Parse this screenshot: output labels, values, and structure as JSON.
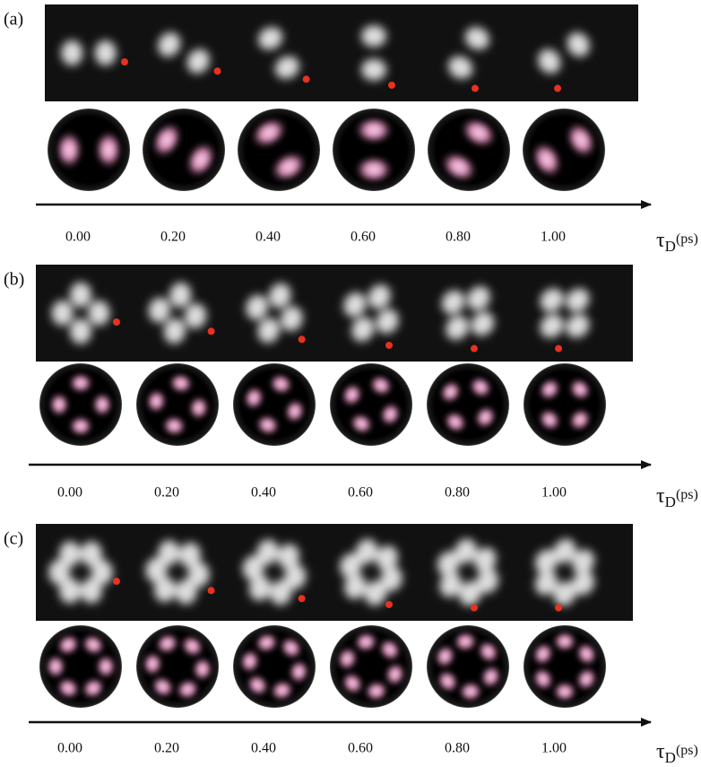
{
  "panels": [
    {
      "label": "(a)",
      "ticks": [
        "0.00",
        "0.20",
        "0.40",
        "0.60",
        "0.80",
        "1.00"
      ],
      "axis_label": {
        "symbol": "τ",
        "subscript": "D",
        "unit": "(ps)"
      }
    },
    {
      "label": "(b)",
      "ticks": [
        "0.00",
        "0.20",
        "0.40",
        "0.60",
        "0.80",
        "1.00"
      ],
      "axis_label": {
        "symbol": "τ",
        "subscript": "D",
        "unit": "(ps)"
      }
    },
    {
      "label": "(c)",
      "ticks": [
        "0.00",
        "0.20",
        "0.40",
        "0.60",
        "0.80",
        "1.00"
      ],
      "axis_label": {
        "symbol": "τ",
        "subscript": "D",
        "unit": "(ps)"
      }
    }
  ]
}
